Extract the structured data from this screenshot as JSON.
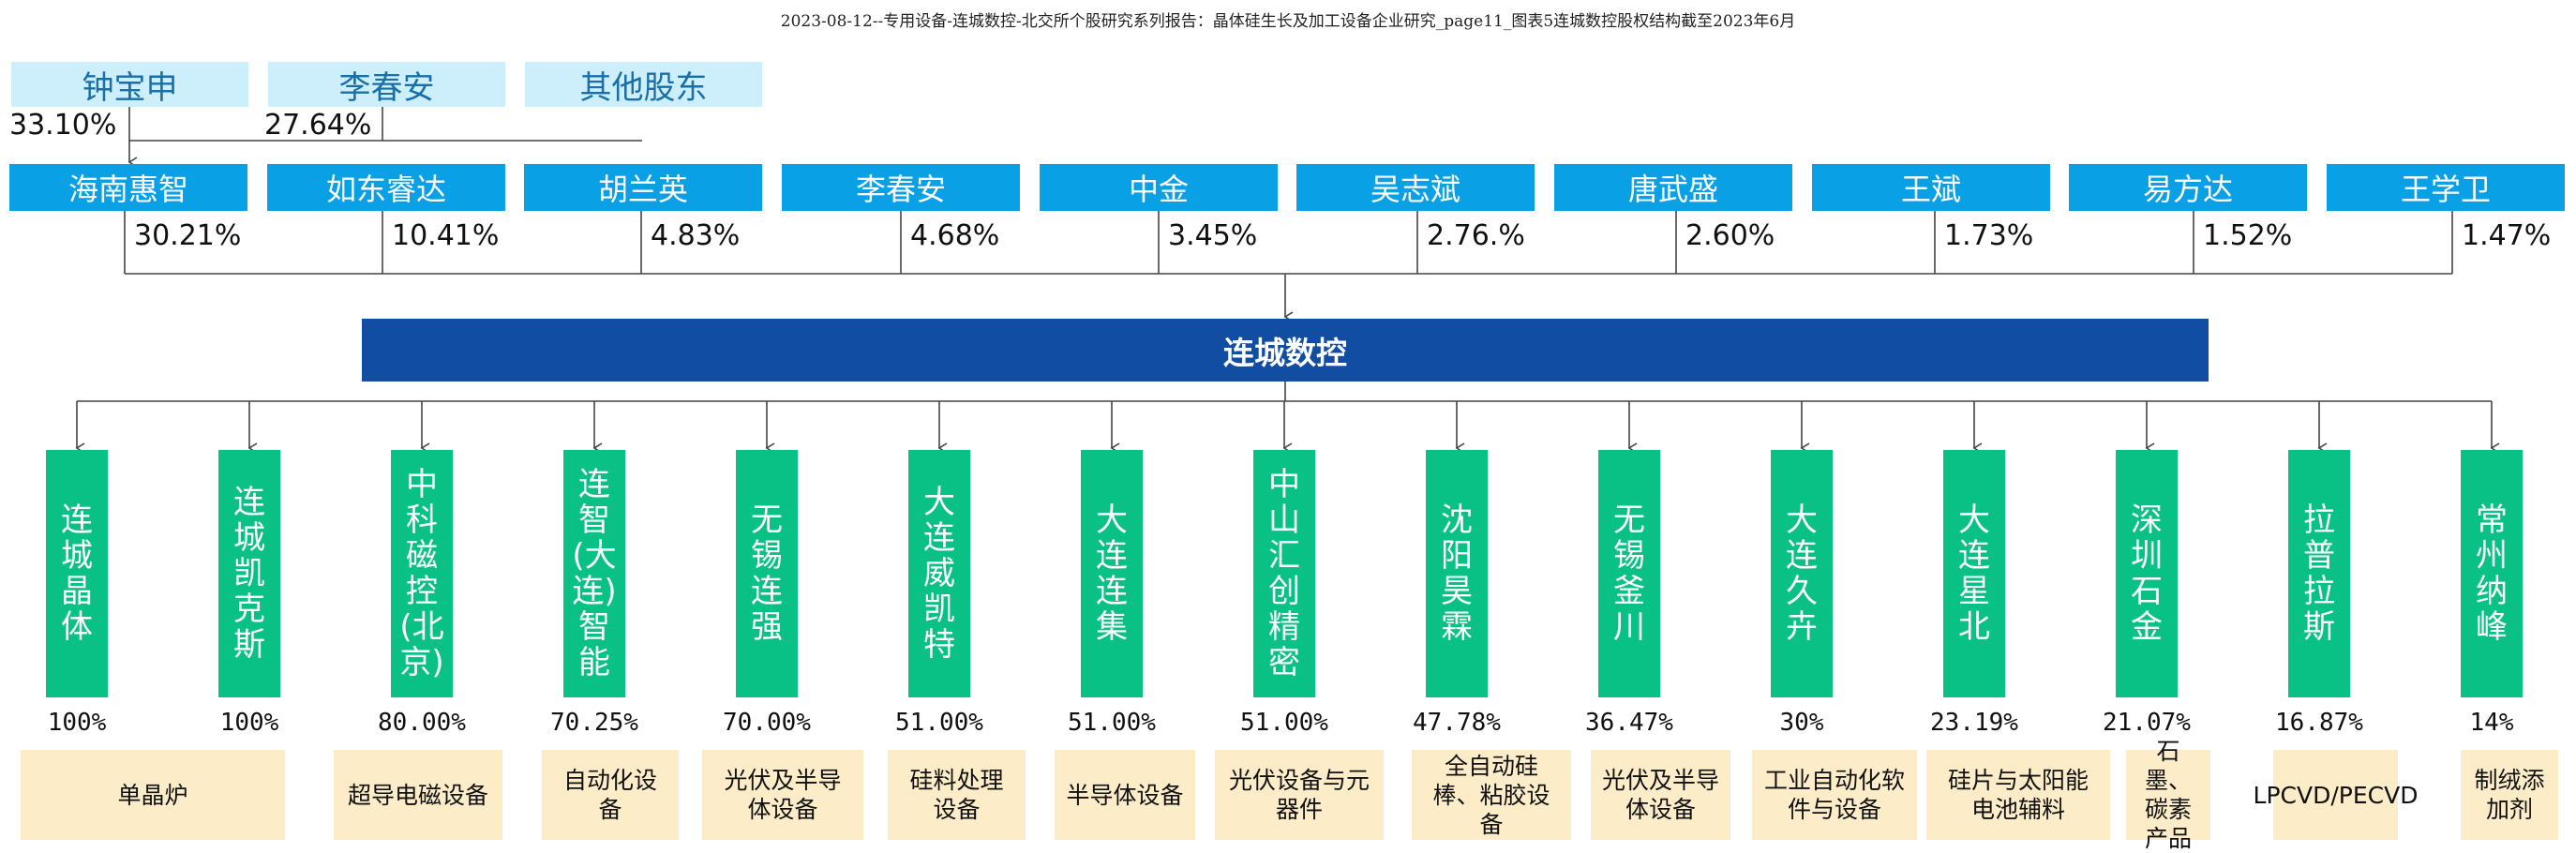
{
  "caption": "2023-08-12--专用设备-连城数控-北交所个股研究系列报告：晶体硅生长及加工设备企业研究_page11_图表5连城数控股权结构截至2023年6月",
  "top_shareholders": [
    {
      "name": "钟宝申",
      "pct": "33.10%"
    },
    {
      "name": "李春安",
      "pct": "27.64%"
    },
    {
      "name": "其他股东",
      "pct": ""
    }
  ],
  "shareholders": [
    {
      "name": "海南惠智",
      "pct": "30.21%"
    },
    {
      "name": "如东睿达",
      "pct": "10.41%"
    },
    {
      "name": "胡兰英",
      "pct": "4.83%"
    },
    {
      "name": "李春安",
      "pct": "4.68%"
    },
    {
      "name": "中金",
      "pct": "3.45%"
    },
    {
      "name": "吴志斌",
      "pct": "2.76.%"
    },
    {
      "name": "唐武盛",
      "pct": "2.60%"
    },
    {
      "name": "王斌",
      "pct": "1.73%"
    },
    {
      "name": "易方达",
      "pct": "1.52%"
    },
    {
      "name": "王学卫",
      "pct": "1.47%"
    }
  ],
  "company": "连城数控",
  "subsidiaries": [
    {
      "name": "连城晶体",
      "pct": "100%"
    },
    {
      "name": "连城凯克斯",
      "pct": "100%"
    },
    {
      "name": "中科磁控(北京)",
      "pct": "80.00%"
    },
    {
      "name": "连智(大连)智能",
      "pct": "70.25%"
    },
    {
      "name": "无锡连强",
      "pct": "70.00%"
    },
    {
      "name": "大连威凯特",
      "pct": "51.00%"
    },
    {
      "name": "大连连集",
      "pct": "51.00%"
    },
    {
      "name": "中山汇创精密",
      "pct": "51.00%"
    },
    {
      "name": "沈阳昊霖",
      "pct": "47.78%"
    },
    {
      "name": "无锡釜川",
      "pct": "36.47%"
    },
    {
      "name": "大连久卉",
      "pct": "30%"
    },
    {
      "name": "大连星北",
      "pct": "23.19%"
    },
    {
      "name": "深圳石金",
      "pct": "21.07%"
    },
    {
      "name": "拉普拉斯",
      "pct": "16.87%"
    },
    {
      "name": "常州纳峰",
      "pct": "14%"
    }
  ],
  "businesses": [
    {
      "label": "单晶炉"
    },
    {
      "label": "超导电磁设备"
    },
    {
      "label": "自动化设备"
    },
    {
      "label": "光伏及半导体设备"
    },
    {
      "label": "硅料处理设备"
    },
    {
      "label": "半导体设备"
    },
    {
      "label": "光伏设备与元器件"
    },
    {
      "label": "全自动硅棒、粘胶设备"
    },
    {
      "label": "光伏及半导体设备"
    },
    {
      "label": "工业自动化软件与设备"
    },
    {
      "label": "硅片与太阳能电池辅料"
    },
    {
      "label": "石墨、碳素产品"
    },
    {
      "label": "LPCVD/PECVD"
    },
    {
      "label": "制绒添加剂"
    }
  ],
  "colors": {
    "top_shareholder_bg": "#cdeefb",
    "shareholder_bg": "#0aa0e6",
    "company_bg": "#114da3",
    "subsidiary_bg": "#09c184",
    "business_bg": "#fcedc8",
    "line": "#444444"
  }
}
